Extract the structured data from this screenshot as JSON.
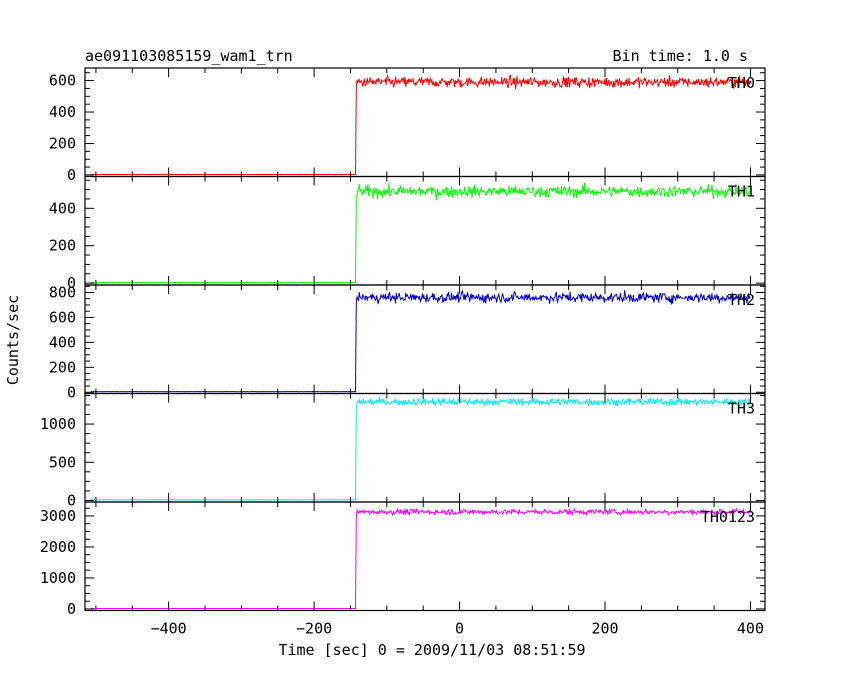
{
  "chart_data": {
    "type": "line",
    "title": "ae091103085159_wam1_trn",
    "subtitle": "Bin time: 1.0 s",
    "xlabel": "Time [sec] 0 = 2009/11/03 08:51:59",
    "ylabel": "Counts/sec",
    "xlim": [
      -515,
      420
    ],
    "xticks": [
      "−400",
      "−200",
      "0",
      "200",
      "400"
    ],
    "xtick_values": [
      -400,
      -200,
      0,
      200,
      400
    ],
    "step_time": -142,
    "panels": [
      {
        "name": "TH0",
        "color": "#ff0000",
        "ylim": [
          -10,
          680
        ],
        "yticks": [
          0,
          200,
          400,
          600
        ],
        "yticklabels": [
          "0",
          "200",
          "400",
          "600"
        ],
        "pre_level": 3,
        "post_level": 590,
        "noise": 25
      },
      {
        "name": "TH1",
        "color": "#00ff00",
        "ylim": [
          -10,
          570
        ],
        "yticks": [
          0,
          200,
          400
        ],
        "yticklabels": [
          "0",
          "200",
          "400"
        ],
        "pre_level": 3,
        "post_level": 490,
        "noise": 23
      },
      {
        "name": "TH2",
        "color": "#0000cc",
        "ylim": [
          -10,
          860
        ],
        "yticks": [
          0,
          200,
          400,
          600,
          800
        ],
        "yticklabels": [
          "0",
          "200",
          "400",
          "600",
          "800"
        ],
        "pre_level": 5,
        "post_level": 760,
        "noise": 30
      },
      {
        "name": "TH3",
        "color": "#00eeee",
        "ylim": [
          -20,
          1400
        ],
        "yticks": [
          0,
          500,
          1000
        ],
        "yticklabels": [
          "0",
          "500",
          "1000"
        ],
        "pre_level": 8,
        "post_level": 1290,
        "noise": 35
      },
      {
        "name": "TH0123",
        "color": "#ff00ff",
        "ylim": [
          -50,
          3450
        ],
        "yticks": [
          0,
          1000,
          2000,
          3000
        ],
        "yticklabels": [
          "0",
          "1000",
          "2000",
          "3000"
        ],
        "pre_level": 15,
        "post_level": 3130,
        "noise": 65
      }
    ]
  }
}
